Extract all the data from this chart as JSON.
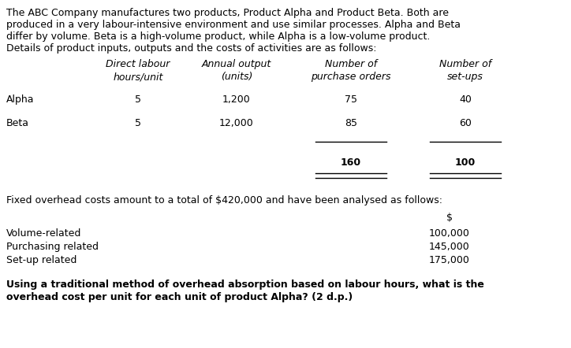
{
  "bg_color": "#ffffff",
  "intro_text": [
    "The ABC Company manufactures two products, Product Alpha and Product Beta. Both are",
    "produced in a very labour-intensive environment and use similar processes. Alpha and Beta",
    "differ by volume. Beta is a high-volume product, while Alpha is a low-volume product.",
    "Details of product inputs, outputs and the costs of activities are as follows:"
  ],
  "header_col1": "Direct labour\nhours/unit",
  "header_col2": "Annual output\n(units)",
  "header_col3": "Number of\npurchase orders",
  "header_col4": "Number of\nset-ups",
  "alpha_values": [
    "5",
    "1,200",
    "75",
    "40"
  ],
  "beta_values": [
    "5",
    "12,000",
    "85",
    "60"
  ],
  "total_values": [
    "160",
    "100"
  ],
  "fixed_text": "Fixed overhead costs amount to a total of $420,000 and have been analysed as follows:",
  "cost_labels": [
    "Volume-related",
    "Purchasing related",
    "Set-up related"
  ],
  "cost_values": [
    "100,000",
    "145,000",
    "175,000"
  ],
  "question_lines": [
    "Using a traditional method of overhead absorption based on labour hours, what is the",
    "overhead cost per unit for each unit of product Alpha? (2 d.p.)"
  ],
  "font_size": 9.0,
  "font_family": "DejaVu Sans"
}
